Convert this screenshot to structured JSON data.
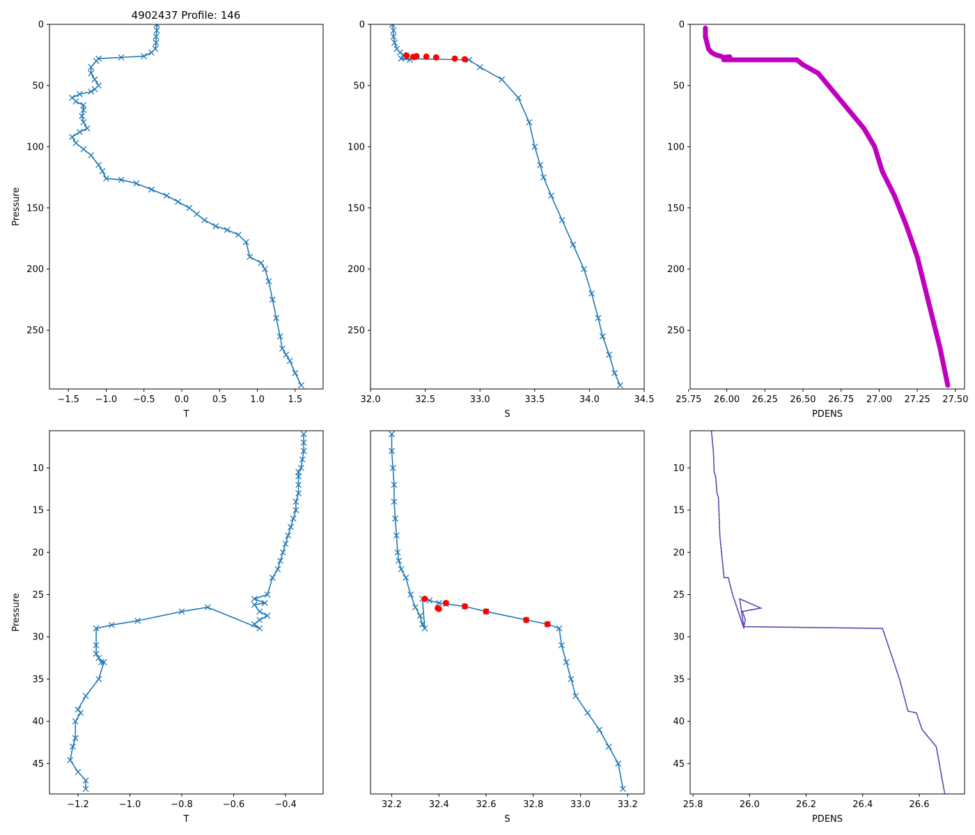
{
  "figure_title": "4902437 Profile: 146",
  "colors": {
    "series": "#1f77b4",
    "flag": "#ff0000",
    "density": "#bf00bf"
  },
  "chart_data": [
    {
      "type": "line",
      "panel": "top-left",
      "marker": "x",
      "xlabel": "T",
      "ylabel": "Pressure",
      "title": "4902437 Profile: 146",
      "xlim": [
        -1.75,
        1.87
      ],
      "ylim": [
        298,
        0
      ],
      "yinverted": true,
      "xticks": [
        -1.5,
        -1.0,
        -0.5,
        0.0,
        0.5,
        1.0,
        1.5
      ],
      "xtick_labels": [
        "−1.5",
        "−1.0",
        "−0.5",
        "0.0",
        "0.5",
        "1.0",
        "1.5"
      ],
      "yticks": [
        0,
        50,
        100,
        150,
        200,
        250
      ],
      "ytick_labels": [
        "0",
        "50",
        "100",
        "150",
        "200",
        "250"
      ],
      "series": [
        {
          "name": "T",
          "x": [
            -0.33,
            -0.33,
            -0.34,
            -0.34,
            -0.35,
            -0.4,
            -0.5,
            -0.8,
            -1.1,
            -1.13,
            -1.2,
            -1.2,
            -1.15,
            -1.1,
            -1.15,
            -1.2,
            -1.35,
            -1.45,
            -1.4,
            -1.3,
            -1.3,
            -1.32,
            -1.3,
            -1.25,
            -1.35,
            -1.45,
            -1.4,
            -1.3,
            -1.2,
            -1.1,
            -1.05,
            -1.0,
            -0.8,
            -0.6,
            -0.4,
            -0.2,
            -0.05,
            0.1,
            0.2,
            0.3,
            0.45,
            0.6,
            0.75,
            0.85,
            0.9,
            1.05,
            1.1,
            1.15,
            1.2,
            1.25,
            1.3,
            1.33,
            1.38,
            1.43,
            1.5,
            1.58
          ],
          "y": [
            0,
            5,
            10,
            15,
            20,
            23,
            26,
            27,
            28,
            30,
            35,
            40,
            45,
            50,
            53,
            55,
            57,
            60,
            63,
            66,
            70,
            75,
            80,
            85,
            88,
            92,
            97,
            102,
            107,
            115,
            120,
            126,
            127,
            130,
            135,
            140,
            145,
            150,
            155,
            160,
            165,
            168,
            172,
            178,
            190,
            195,
            200,
            210,
            225,
            240,
            255,
            265,
            270,
            275,
            285,
            295
          ]
        }
      ]
    },
    {
      "type": "line",
      "panel": "top-middle",
      "marker": "x",
      "xlabel": "S",
      "ylabel": "",
      "xlim": [
        32.0,
        34.5
      ],
      "ylim": [
        298,
        0
      ],
      "yinverted": true,
      "xticks": [
        32.0,
        32.5,
        33.0,
        33.5,
        34.0,
        34.5
      ],
      "xtick_labels": [
        "32.0",
        "32.5",
        "33.0",
        "33.5",
        "34.0",
        "34.5"
      ],
      "yticks": [
        0,
        50,
        100,
        150,
        200,
        250
      ],
      "ytick_labels": [
        "0",
        "50",
        "100",
        "150",
        "200",
        "250"
      ],
      "series": [
        {
          "name": "S",
          "x": [
            32.2,
            32.21,
            32.21,
            32.22,
            32.24,
            32.27,
            32.3,
            32.33,
            32.36,
            32.28,
            32.9,
            33.0,
            33.2,
            33.35,
            33.45,
            33.5,
            33.55,
            33.58,
            33.65,
            33.75,
            33.85,
            33.95,
            34.02,
            34.08,
            34.12,
            34.18,
            34.23,
            34.28
          ],
          "y": [
            0,
            5,
            10,
            15,
            20,
            23,
            25,
            27,
            29,
            28,
            29,
            35,
            45,
            60,
            80,
            100,
            115,
            125,
            140,
            160,
            180,
            200,
            220,
            240,
            255,
            270,
            285,
            295
          ]
        }
      ],
      "flagged": {
        "name": "flag",
        "x": [
          32.33,
          32.39,
          32.4,
          32.42,
          32.51,
          32.6,
          32.77,
          32.86
        ],
        "y": [
          25.5,
          26.6,
          26.7,
          26.0,
          26.4,
          27.0,
          28.0,
          28.5
        ]
      }
    },
    {
      "type": "line",
      "panel": "top-right",
      "marker": "dot",
      "xlabel": "PDENS",
      "ylabel": "",
      "xlim": [
        25.76,
        27.56
      ],
      "ylim": [
        298,
        0
      ],
      "yinverted": true,
      "xticks": [
        25.75,
        26.0,
        26.25,
        26.5,
        26.75,
        27.0,
        27.25,
        27.5
      ],
      "xtick_labels": [
        "25.75",
        "26.00",
        "26.25",
        "26.50",
        "26.75",
        "27.00",
        "27.25",
        "27.50"
      ],
      "yticks": [
        0,
        50,
        100,
        150,
        200,
        250
      ],
      "ytick_labels": [
        "0",
        "50",
        "100",
        "150",
        "200",
        "250"
      ],
      "series": [
        {
          "name": "PDENS",
          "x": [
            25.86,
            25.86,
            25.87,
            25.88,
            25.9,
            25.93,
            25.96,
            25.98,
            26.02,
            25.98,
            26.46,
            26.5,
            26.6,
            26.7,
            26.8,
            26.9,
            26.97,
            27.02,
            27.1,
            27.18,
            27.25,
            27.3,
            27.35,
            27.4,
            27.45
          ],
          "y": [
            3,
            10,
            15,
            20,
            23,
            25,
            26,
            27,
            26.5,
            29,
            29,
            33,
            40,
            55,
            70,
            85,
            100,
            120,
            140,
            165,
            190,
            215,
            240,
            265,
            295
          ]
        }
      ]
    },
    {
      "type": "line",
      "panel": "bottom-left",
      "marker": "x",
      "xlabel": "T",
      "ylabel": "Pressure",
      "xlim": [
        -1.31,
        -0.255
      ],
      "ylim": [
        48.6,
        5.6
      ],
      "yinverted": true,
      "xticks": [
        -1.2,
        -1.0,
        -0.8,
        -0.6,
        -0.4
      ],
      "xtick_labels": [
        "−1.2",
        "−1.0",
        "−0.8",
        "−0.6",
        "−0.4"
      ],
      "yticks": [
        10,
        15,
        20,
        25,
        30,
        35,
        40,
        45
      ],
      "ytick_labels": [
        "10",
        "15",
        "20",
        "25",
        "30",
        "35",
        "40",
        "45"
      ],
      "series": [
        {
          "name": "T",
          "x": [
            -0.33,
            -0.33,
            -0.33,
            -0.335,
            -0.34,
            -0.35,
            -0.35,
            -0.35,
            -0.35,
            -0.36,
            -0.36,
            -0.37,
            -0.38,
            -0.39,
            -0.4,
            -0.41,
            -0.42,
            -0.43,
            -0.45,
            -0.47,
            -0.52,
            -0.48,
            -0.52,
            -0.5,
            -0.47,
            -0.5,
            -0.52,
            -0.5,
            -0.7,
            -0.8,
            -0.97,
            -1.07,
            -1.13,
            -1.13,
            -1.13,
            -1.12,
            -1.11,
            -1.1,
            -1.12,
            -1.17,
            -1.2,
            -1.19,
            -1.21,
            -1.21,
            -1.22,
            -1.23,
            -1.2,
            -1.17,
            -1.17
          ],
          "y": [
            6,
            7,
            8,
            9,
            10,
            10.5,
            11,
            12,
            13,
            14,
            15,
            16,
            17,
            18,
            19,
            20,
            21,
            22,
            23,
            25,
            25.5,
            26,
            26.2,
            27.0,
            27.5,
            28,
            28.5,
            29,
            26.5,
            27.0,
            28.1,
            28.6,
            29,
            31,
            32,
            32.5,
            33,
            33,
            35,
            37,
            38.6,
            39,
            40,
            42,
            43,
            44.6,
            46,
            47,
            48
          ]
        }
      ]
    },
    {
      "type": "line",
      "panel": "bottom-middle",
      "marker": "x",
      "xlabel": "S",
      "ylabel": "",
      "xlim": [
        32.11,
        33.27
      ],
      "ylim": [
        48.6,
        5.6
      ],
      "yinverted": true,
      "xticks": [
        32.2,
        32.4,
        32.6,
        32.8,
        33.0,
        33.2
      ],
      "xtick_labels": [
        "32.2",
        "32.4",
        "32.6",
        "32.8",
        "33.0",
        "33.2"
      ],
      "series": [
        {
          "name": "S",
          "x": [
            32.2,
            32.2,
            32.205,
            32.21,
            32.21,
            32.215,
            32.22,
            32.225,
            32.23,
            32.24,
            32.26,
            32.28,
            32.3,
            32.32,
            32.33,
            32.34,
            32.33,
            32.36,
            32.4,
            32.43,
            32.51,
            32.6,
            32.77,
            32.86,
            32.91,
            32.92,
            32.94,
            32.96,
            32.98,
            33.03,
            33.08,
            33.12,
            33.16,
            33.18
          ],
          "y": [
            6,
            8,
            10,
            12,
            14,
            16,
            18,
            20,
            21,
            22,
            23,
            25,
            26.5,
            27.5,
            28.5,
            29,
            25.5,
            25.7,
            26.0,
            26.1,
            26.4,
            27.0,
            28.0,
            28.5,
            29,
            31,
            33,
            35,
            37,
            39,
            41,
            43,
            45,
            48
          ]
        }
      ],
      "flagged": {
        "name": "flag",
        "x": [
          32.34,
          32.395,
          32.4,
          32.43,
          32.51,
          32.6,
          32.77,
          32.86
        ],
        "y": [
          25.5,
          26.6,
          26.7,
          26.0,
          26.4,
          27.0,
          28.0,
          28.5
        ]
      }
    },
    {
      "type": "line",
      "panel": "bottom-right",
      "marker": "none",
      "xlabel": "PDENS",
      "ylabel": "",
      "xlim": [
        25.79,
        26.76
      ],
      "ylim": [
        48.6,
        5.6
      ],
      "yinverted": true,
      "xticks": [
        25.8,
        26.0,
        26.2,
        26.4,
        26.6
      ],
      "xtick_labels": [
        "25.8",
        "26.0",
        "26.2",
        "26.4",
        "26.6"
      ],
      "yticks": [
        10,
        15,
        20,
        25,
        30,
        35,
        40,
        45
      ],
      "ytick_labels": [
        "10",
        "15",
        "20",
        "25",
        "30",
        "35",
        "40",
        "45"
      ],
      "series": [
        {
          "name": "PDENS",
          "x": [
            25.865,
            25.872,
            25.875,
            25.88,
            25.885,
            25.89,
            25.895,
            25.91,
            25.925,
            25.94,
            25.96,
            25.975,
            25.98,
            25.965,
            26.04,
            25.975,
            25.98,
            25.985,
            25.98,
            26.47,
            26.49,
            26.51,
            26.53,
            26.56,
            26.59,
            26.61,
            26.66,
            26.69
          ],
          "y": [
            5.6,
            8,
            10.5,
            11,
            13,
            13.5,
            18,
            23,
            23,
            25,
            27,
            28.5,
            29,
            25.5,
            26.6,
            27.0,
            27.5,
            28,
            28.8,
            29,
            31,
            33,
            35,
            38.8,
            39,
            41,
            43,
            48.6
          ]
        }
      ]
    }
  ]
}
